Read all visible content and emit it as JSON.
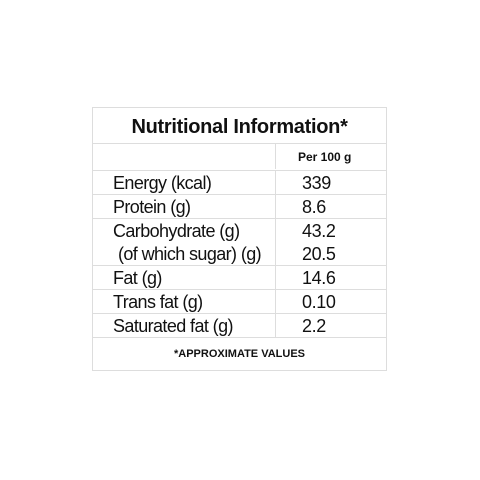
{
  "title": "Nutritional Information*",
  "column_header": "Per 100 g",
  "rows": [
    [
      {
        "label": "Energy (kcal)",
        "value": "339"
      }
    ],
    [
      {
        "label": "Protein (g)",
        "value": "8.6"
      }
    ],
    [
      {
        "label": "Carbohydrate (g)",
        "value": "43.2"
      },
      {
        "label": "(of which sugar) (g)",
        "value": "20.5"
      }
    ],
    [
      {
        "label": "Fat (g)",
        "value": "14.6"
      }
    ],
    [
      {
        "label": "Trans fat (g)",
        "value": "0.10"
      }
    ],
    [
      {
        "label": "Saturated fat (g)",
        "value": "2.2"
      }
    ]
  ],
  "footnote": "*APPROXIMATE VALUES"
}
